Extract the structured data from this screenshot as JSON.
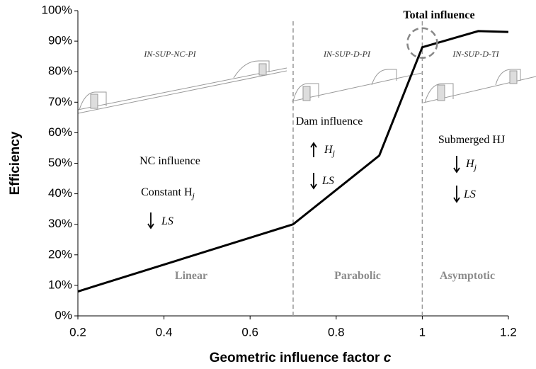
{
  "chart_data": {
    "type": "line",
    "xlabel": {
      "text": "Geometric influence factor",
      "var": "c"
    },
    "ylabel": "Efficiency",
    "x": [
      0.2,
      0.7,
      0.9,
      1.0,
      1.13,
      1.2
    ],
    "series": [
      {
        "color": "#000000",
        "values": [
          8,
          30,
          52.5,
          88,
          93.3,
          93
        ]
      }
    ],
    "xlim": [
      0.2,
      1.2
    ],
    "xticks": [
      0.2,
      0.4,
      0.6,
      0.8,
      1,
      1.2
    ],
    "ylim": [
      0,
      100
    ],
    "yticks": [
      {
        "value": 0,
        "label": "0%"
      },
      {
        "value": 10,
        "label": "10%"
      },
      {
        "value": 20,
        "label": "20%"
      },
      {
        "value": 30,
        "label": "30%"
      },
      {
        "value": 40,
        "label": "40%"
      },
      {
        "value": 50,
        "label": "50%"
      },
      {
        "value": 60,
        "label": "60%"
      },
      {
        "value": 70,
        "label": "70%"
      },
      {
        "value": 80,
        "label": "80%"
      },
      {
        "value": 90,
        "label": "90%"
      },
      {
        "value": 100,
        "label": "100%"
      }
    ],
    "grid": false,
    "vlines": [
      0.7,
      1
    ],
    "highlight": {
      "x": 1,
      "y": 88
    },
    "annotations": [
      {
        "text": "Total influence"
      },
      {
        "text": "IN-SUP-NC-PI"
      },
      {
        "text": "IN-SUP-D-PI"
      },
      {
        "text": "IN-SUP-D-TI"
      },
      {
        "text": "NC influence"
      },
      {
        "text": "Constant H",
        "sub": "j"
      },
      {
        "text": "LS"
      },
      {
        "text": "Dam influence"
      },
      {
        "text": "H",
        "sub": "j"
      },
      {
        "text": "LS"
      },
      {
        "text": "Submerged HJ"
      },
      {
        "text": "H",
        "sub": "j"
      },
      {
        "text": "LS"
      },
      {
        "text": "Linear"
      },
      {
        "text": "Parabolic"
      },
      {
        "text": "Asymptotic"
      }
    ]
  }
}
